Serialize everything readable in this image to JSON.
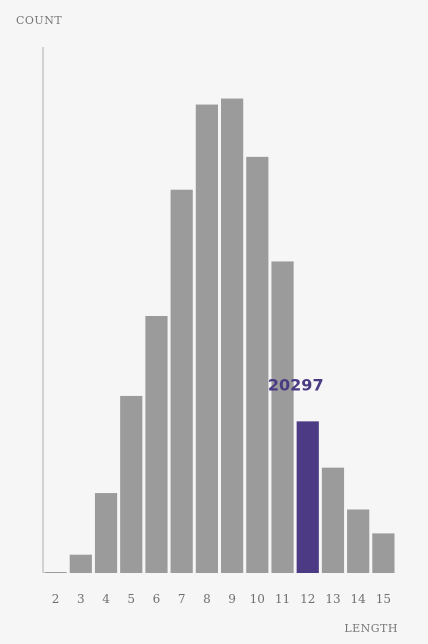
{
  "chart_data": {
    "type": "bar",
    "xlabel": "LENGTH",
    "ylabel": "COUNT",
    "categories": [
      "2",
      "3",
      "4",
      "5",
      "6",
      "7",
      "8",
      "9",
      "10",
      "11",
      "12",
      "13",
      "14",
      "15"
    ],
    "values": [
      90,
      2450,
      10700,
      23700,
      34400,
      51300,
      62700,
      63500,
      55700,
      41700,
      20297,
      14100,
      8500,
      5300
    ],
    "ylim": [
      0,
      70000
    ],
    "grid": false,
    "highlight": {
      "category": "12",
      "label": "20297"
    },
    "colors": {
      "bar": "#9b9b9b",
      "highlight": "#4d3a84",
      "axis": "#b9b9b9",
      "background": "#f6f6f6"
    }
  }
}
